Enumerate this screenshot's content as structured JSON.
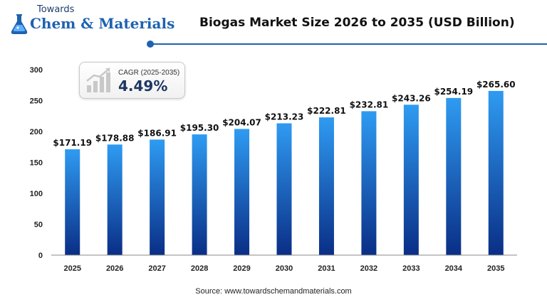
{
  "brand": {
    "top": "Towards",
    "main": "Chem & Materials"
  },
  "cagr": {
    "label": "CAGR (2025-2035)",
    "value": "4.49%"
  },
  "source": "Source: www.towardschemandmaterials.com",
  "colors": {
    "bar_top": "#2f9bf2",
    "bar_bottom": "#0a2e86",
    "accent": "#1e62b0"
  },
  "chart_data": {
    "type": "bar",
    "title": "Biogas Market Size 2026 to 2035 (USD Billion)",
    "categories": [
      "2025",
      "2026",
      "2027",
      "2028",
      "2029",
      "2030",
      "2031",
      "2032",
      "2033",
      "2034",
      "2035"
    ],
    "values": [
      171.19,
      178.88,
      186.91,
      195.3,
      204.07,
      213.23,
      222.81,
      232.81,
      243.26,
      254.19,
      265.6
    ],
    "data_labels": [
      "$171.19",
      "$178.88",
      "$186.91",
      "$195.30",
      "$204.07",
      "$213.23",
      "$222.81",
      "$232.81",
      "$243.26",
      "$254.19",
      "$265.60"
    ],
    "ylim": [
      0,
      300
    ],
    "yticks": [
      "0",
      "50",
      "100",
      "150",
      "200",
      "250",
      "300"
    ],
    "grid": false,
    "xlabel": "",
    "ylabel": ""
  }
}
